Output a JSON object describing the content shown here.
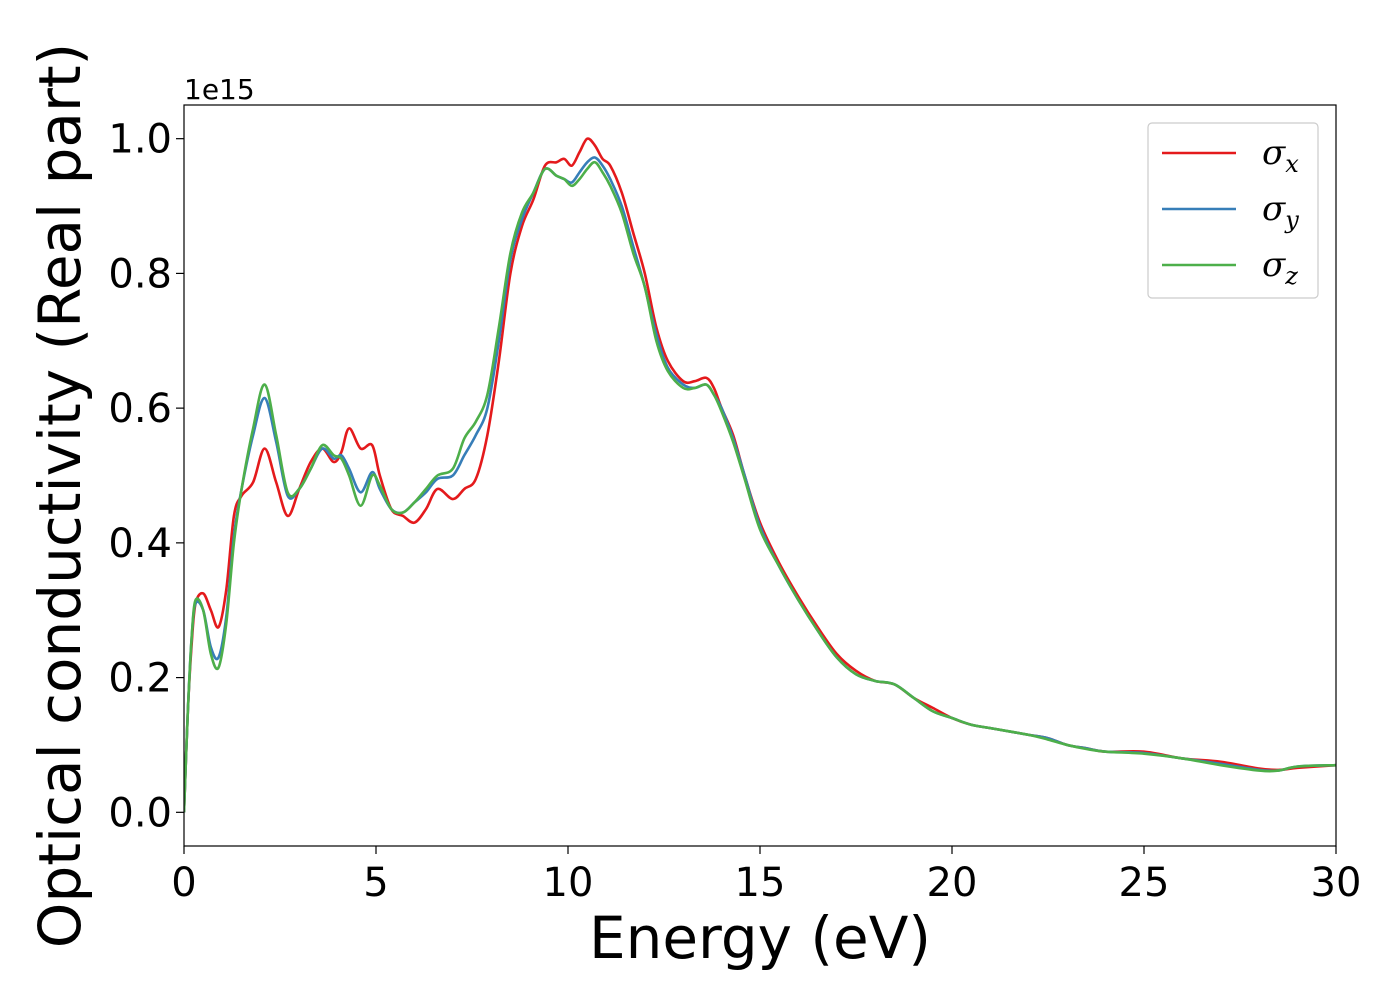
{
  "chart_data": {
    "type": "line",
    "xlabel": "Energy (eV)",
    "ylabel": "Optical conductivity (Real part)",
    "y_offset_label": "1e15",
    "xlim": [
      0,
      30
    ],
    "ylim": [
      -0.05,
      1.05
    ],
    "xticks": [
      0,
      5,
      10,
      15,
      20,
      25,
      30
    ],
    "xtick_labels": [
      "0",
      "5",
      "10",
      "15",
      "20",
      "25",
      "30"
    ],
    "yticks": [
      0.0,
      0.2,
      0.4,
      0.6,
      0.8,
      1.0
    ],
    "ytick_labels": [
      "0.0",
      "0.2",
      "0.4",
      "0.6",
      "0.8",
      "1.0"
    ],
    "grid": false,
    "legend_position": "top-right",
    "series": [
      {
        "name": "σ",
        "subscript": "x",
        "color": "#e41a1c",
        "x": [
          0,
          0.1,
          0.2,
          0.3,
          0.5,
          0.7,
          0.9,
          1.1,
          1.3,
          1.5,
          1.8,
          2.1,
          2.4,
          2.7,
          3.0,
          3.3,
          3.6,
          3.9,
          4.1,
          4.3,
          4.6,
          4.9,
          5.1,
          5.4,
          5.7,
          6.0,
          6.3,
          6.6,
          7.0,
          7.3,
          7.6,
          7.9,
          8.2,
          8.5,
          8.8,
          9.1,
          9.4,
          9.7,
          9.9,
          10.1,
          10.3,
          10.5,
          10.7,
          10.9,
          11.1,
          11.4,
          11.7,
          12.0,
          12.3,
          12.6,
          13.0,
          13.3,
          13.6,
          13.8,
          14.0,
          14.3,
          14.6,
          15.0,
          15.5,
          16.0,
          16.5,
          17.0,
          17.5,
          18.0,
          18.5,
          19.0,
          19.5,
          20.0,
          20.5,
          21.0,
          22.0,
          22.5,
          23.0,
          23.5,
          24.0,
          25.0,
          26.0,
          27.0,
          28.0,
          28.5,
          29.0,
          30.0
        ],
        "y": [
          0.0,
          0.15,
          0.25,
          0.31,
          0.325,
          0.3,
          0.275,
          0.33,
          0.44,
          0.47,
          0.49,
          0.54,
          0.49,
          0.44,
          0.48,
          0.52,
          0.54,
          0.52,
          0.535,
          0.57,
          0.54,
          0.545,
          0.5,
          0.45,
          0.44,
          0.43,
          0.45,
          0.48,
          0.465,
          0.48,
          0.495,
          0.56,
          0.67,
          0.8,
          0.87,
          0.91,
          0.96,
          0.965,
          0.97,
          0.96,
          0.98,
          1.0,
          0.99,
          0.97,
          0.96,
          0.92,
          0.86,
          0.8,
          0.72,
          0.67,
          0.64,
          0.64,
          0.645,
          0.63,
          0.6,
          0.56,
          0.5,
          0.43,
          0.37,
          0.32,
          0.275,
          0.235,
          0.21,
          0.195,
          0.19,
          0.17,
          0.155,
          0.14,
          0.13,
          0.125,
          0.115,
          0.11,
          0.1,
          0.095,
          0.09,
          0.09,
          0.08,
          0.075,
          0.065,
          0.063,
          0.066,
          0.07
        ]
      },
      {
        "name": "σ",
        "subscript": "y",
        "color": "#377eb8",
        "x": [
          0,
          0.1,
          0.2,
          0.3,
          0.5,
          0.7,
          0.9,
          1.1,
          1.3,
          1.5,
          1.8,
          2.1,
          2.4,
          2.7,
          3.0,
          3.3,
          3.6,
          3.9,
          4.1,
          4.3,
          4.6,
          4.9,
          5.1,
          5.4,
          5.7,
          6.0,
          6.3,
          6.6,
          7.0,
          7.3,
          7.6,
          7.9,
          8.2,
          8.5,
          8.8,
          9.1,
          9.4,
          9.7,
          9.9,
          10.1,
          10.3,
          10.5,
          10.7,
          10.9,
          11.1,
          11.4,
          11.7,
          12.0,
          12.3,
          12.6,
          13.0,
          13.3,
          13.6,
          13.8,
          14.0,
          14.3,
          14.6,
          15.0,
          15.5,
          16.0,
          16.5,
          17.0,
          17.5,
          18.0,
          18.5,
          19.0,
          19.5,
          20.0,
          20.5,
          21.0,
          22.0,
          22.5,
          23.0,
          23.5,
          24.0,
          25.0,
          26.0,
          27.0,
          28.0,
          28.5,
          29.0,
          30.0
        ],
        "y": [
          0.0,
          0.15,
          0.26,
          0.31,
          0.3,
          0.245,
          0.23,
          0.29,
          0.41,
          0.48,
          0.56,
          0.615,
          0.55,
          0.47,
          0.48,
          0.51,
          0.54,
          0.525,
          0.53,
          0.51,
          0.475,
          0.505,
          0.48,
          0.45,
          0.445,
          0.46,
          0.475,
          0.495,
          0.5,
          0.53,
          0.56,
          0.6,
          0.7,
          0.82,
          0.88,
          0.92,
          0.955,
          0.945,
          0.94,
          0.935,
          0.95,
          0.965,
          0.972,
          0.96,
          0.94,
          0.9,
          0.84,
          0.78,
          0.71,
          0.66,
          0.635,
          0.63,
          0.635,
          0.62,
          0.6,
          0.555,
          0.5,
          0.425,
          0.365,
          0.315,
          0.27,
          0.23,
          0.205,
          0.195,
          0.19,
          0.17,
          0.15,
          0.14,
          0.13,
          0.125,
          0.115,
          0.11,
          0.1,
          0.095,
          0.09,
          0.088,
          0.08,
          0.072,
          0.063,
          0.062,
          0.068,
          0.07
        ]
      },
      {
        "name": "σ",
        "subscript": "z",
        "color": "#4daf4a",
        "x": [
          0,
          0.1,
          0.2,
          0.3,
          0.5,
          0.7,
          0.9,
          1.1,
          1.3,
          1.5,
          1.8,
          2.1,
          2.4,
          2.7,
          3.0,
          3.3,
          3.6,
          3.9,
          4.1,
          4.3,
          4.6,
          4.9,
          5.1,
          5.4,
          5.7,
          6.0,
          6.3,
          6.6,
          7.0,
          7.3,
          7.6,
          7.9,
          8.2,
          8.5,
          8.8,
          9.1,
          9.4,
          9.7,
          9.9,
          10.1,
          10.3,
          10.5,
          10.7,
          10.9,
          11.1,
          11.4,
          11.7,
          12.0,
          12.3,
          12.6,
          13.0,
          13.3,
          13.6,
          13.8,
          14.0,
          14.3,
          14.6,
          15.0,
          15.5,
          16.0,
          16.5,
          17.0,
          17.5,
          18.0,
          18.5,
          19.0,
          19.5,
          20.0,
          20.5,
          21.0,
          22.0,
          22.5,
          23.0,
          23.5,
          24.0,
          25.0,
          26.0,
          27.0,
          28.0,
          28.5,
          29.0,
          30.0
        ],
        "y": [
          0.0,
          0.15,
          0.26,
          0.315,
          0.3,
          0.235,
          0.215,
          0.28,
          0.4,
          0.48,
          0.57,
          0.635,
          0.56,
          0.475,
          0.48,
          0.51,
          0.545,
          0.53,
          0.525,
          0.5,
          0.455,
          0.5,
          0.485,
          0.45,
          0.445,
          0.46,
          0.48,
          0.5,
          0.51,
          0.555,
          0.58,
          0.62,
          0.72,
          0.83,
          0.89,
          0.92,
          0.955,
          0.945,
          0.94,
          0.93,
          0.94,
          0.955,
          0.965,
          0.95,
          0.93,
          0.89,
          0.83,
          0.78,
          0.7,
          0.655,
          0.63,
          0.63,
          0.635,
          0.62,
          0.595,
          0.55,
          0.495,
          0.42,
          0.365,
          0.315,
          0.27,
          0.23,
          0.205,
          0.195,
          0.19,
          0.17,
          0.15,
          0.14,
          0.13,
          0.125,
          0.115,
          0.108,
          0.1,
          0.094,
          0.09,
          0.087,
          0.08,
          0.07,
          0.062,
          0.062,
          0.068,
          0.07
        ]
      }
    ]
  }
}
